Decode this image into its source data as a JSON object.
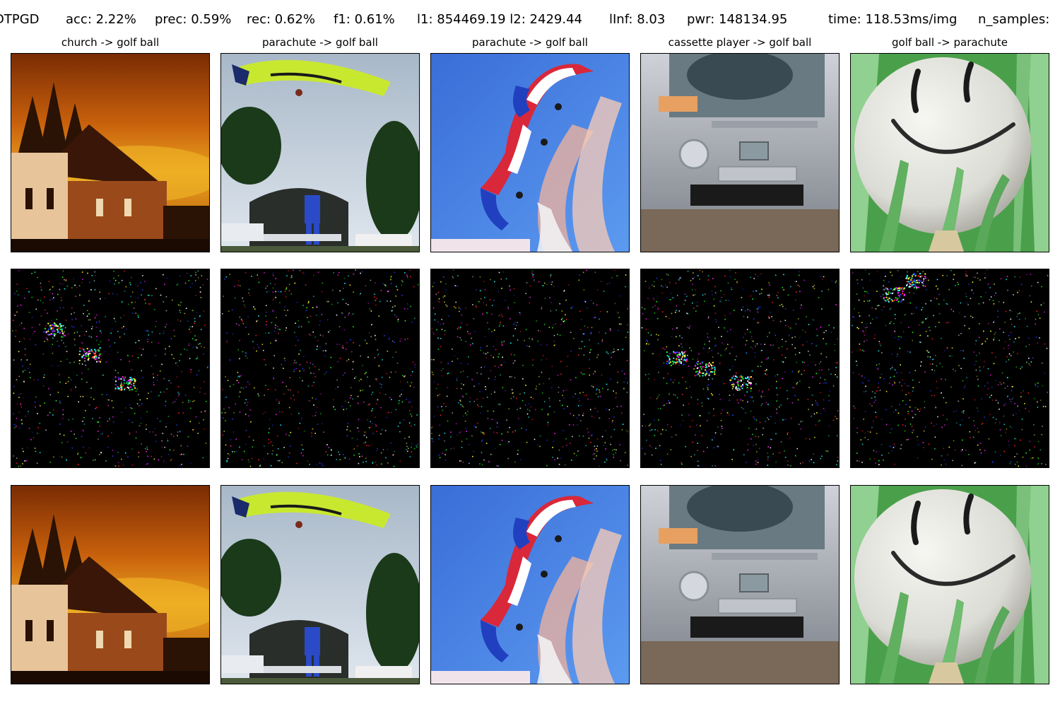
{
  "header": {
    "method": "DTPGD",
    "acc": "acc: 2.22%",
    "prec": "prec: 0.59%",
    "rec": "rec: 0.62%",
    "f1": "f1: 0.61%",
    "norms": "l1: 854469.19 l2: 2429.44",
    "linf": "lInf: 8.03",
    "pwr": "pwr: 148134.95",
    "time": "time: 118.53ms/img",
    "n_samples": "n_samples:"
  },
  "columns": [
    {
      "title": "church -> golf ball",
      "subject": "church"
    },
    {
      "title": "parachute -> golf ball",
      "subject": "parachute-glider"
    },
    {
      "title": "parachute -> golf ball",
      "subject": "parachute-team"
    },
    {
      "title": "cassette player -> golf ball",
      "subject": "boombox"
    },
    {
      "title": "golf ball -> parachute",
      "subject": "golf-ball"
    }
  ],
  "rows": [
    "original",
    "perturbation",
    "adversarial"
  ],
  "colors": {
    "church_sky_top": "#8a3a06",
    "church_sky_mid": "#e09a1a",
    "church_wall": "#d8a070",
    "glider_wing": "#c8e830",
    "team_sky": "#3a72d8",
    "boombox_silver": "#b8bcc4",
    "grass_green": "#5ab05a",
    "golf_ball": "#ecece8",
    "noise_bg": "#000000"
  }
}
